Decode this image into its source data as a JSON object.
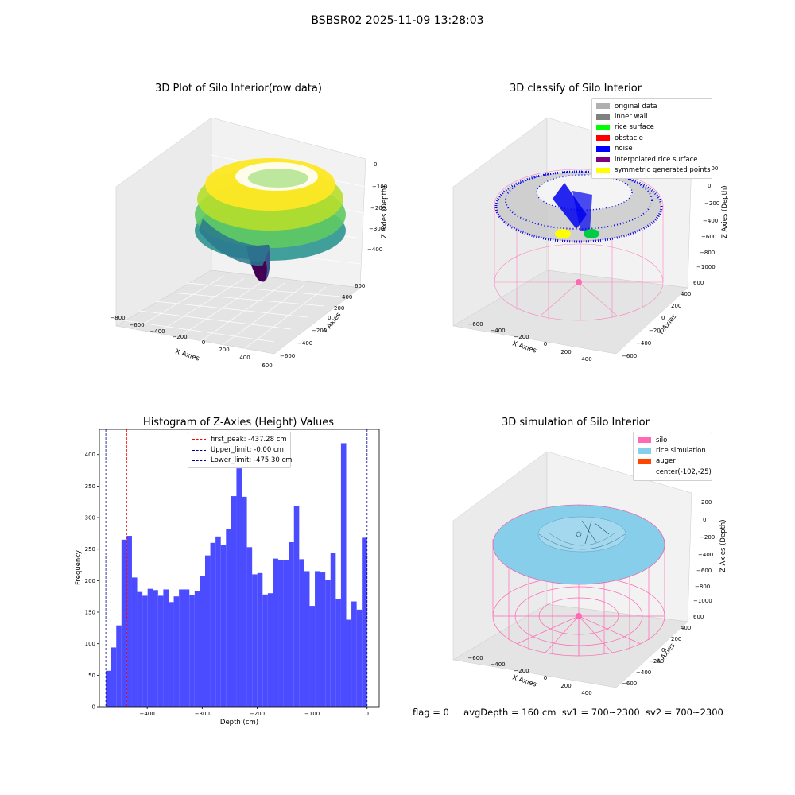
{
  "suptitle": "BSBSR02 2025-11-09 13:28:03",
  "colors": {
    "histogram_bar": "#4b4bff",
    "first_peak_line": "#ff0000",
    "limit_line": "#0000aa",
    "silo_wire": "#ff69b4",
    "rice_fill": "#87ceeb",
    "noise": "#0000ee",
    "rice_surface": "#00ff00",
    "symmetric": "#ffff00",
    "inner_wall": "#808080"
  },
  "panel_tl": {
    "title": "3D Plot of Silo Interior(row data)",
    "xlabel": "X Axies",
    "ylabel": "Y Axies",
    "zlabel": "Z Axies (Depth)",
    "xticks": [
      "−800",
      "−600",
      "−400",
      "−200",
      "0",
      "200",
      "400",
      "600"
    ],
    "yticks": [
      "−600",
      "−400",
      "−200",
      "0",
      "200",
      "400",
      "600"
    ],
    "zticks": [
      "0",
      "−100",
      "−200",
      "−300",
      "−400"
    ],
    "colormap": [
      "#fde725",
      "#5ec962",
      "#21918c",
      "#3b528b",
      "#440154"
    ]
  },
  "panel_tr": {
    "title": "3D classify of Silo Interior",
    "xlabel": "X Axies",
    "ylabel": "Y Axies",
    "zlabel": "Z Axies (Depth)",
    "xticks": [
      "−600",
      "−400",
      "−200",
      "0",
      "200",
      "400"
    ],
    "yticks": [
      "−600",
      "−400",
      "−200",
      "0",
      "200",
      "400",
      "600"
    ],
    "zticks": [
      "200",
      "0",
      "−200",
      "−400",
      "−600",
      "−800",
      "−1000"
    ],
    "legend": [
      {
        "label": "original data",
        "color": "#b0b0b0"
      },
      {
        "label": "inner wall",
        "color": "#808080"
      },
      {
        "label": "rice surface",
        "color": "#00ff00"
      },
      {
        "label": "obstacle",
        "color": "#ff0000"
      },
      {
        "label": "noise",
        "color": "#0000ff"
      },
      {
        "label": "interpolated rice surface",
        "color": "#800080"
      },
      {
        "label": "symmetric generated points",
        "color": "#ffff00"
      }
    ]
  },
  "panel_br": {
    "title": "3D simulation of Silo Interior",
    "xlabel": "X Axies",
    "ylabel": "Y Axies",
    "zlabel": "Z Axies (Depth)",
    "xticks": [
      "−600",
      "−400",
      "−200",
      "0",
      "200",
      "400"
    ],
    "yticks": [
      "−600",
      "−400",
      "−200",
      "0",
      "200",
      "400",
      "600"
    ],
    "zticks": [
      "200",
      "0",
      "−200",
      "−400",
      "−600",
      "−800",
      "−1000"
    ],
    "legend": [
      {
        "label": "silo",
        "color": "#ff69b4"
      },
      {
        "label": "rice simulation",
        "color": "#87ceeb"
      },
      {
        "label": "auger",
        "color": "#ff4500"
      },
      {
        "label": "center(-102,-25)",
        "color": ""
      }
    ]
  },
  "footer": {
    "flag": "flag = 0",
    "avg": "avgDepth = 160 cm",
    "sv1": "sv1 = 700~2300",
    "sv2": "sv2 = 700~2300"
  },
  "chart_data": {
    "type": "bar",
    "title": "Histogram of Z-Axies (Height) Values",
    "xlabel": "Depth (cm)",
    "ylabel": "Frequency",
    "xlim": [
      -487,
      22
    ],
    "ylim": [
      0,
      440
    ],
    "xticks": [
      -400,
      -300,
      -200,
      -100,
      0
    ],
    "xtick_labels": [
      "−400",
      "−300",
      "−200",
      "−100",
      "0"
    ],
    "yticks": [
      0,
      50,
      100,
      150,
      200,
      250,
      300,
      350,
      400
    ],
    "bin_start": -475.3,
    "bin_width": 9.506,
    "values": [
      57,
      94,
      129,
      265,
      271,
      205,
      182,
      176,
      187,
      185,
      176,
      186,
      166,
      175,
      186,
      186,
      177,
      184,
      207,
      240,
      260,
      270,
      257,
      282,
      334,
      378,
      333,
      253,
      210,
      212,
      178,
      180,
      235,
      233,
      232,
      261,
      319,
      234,
      215,
      160,
      215,
      213,
      201,
      244,
      171,
      418,
      138,
      167,
      154,
      268
    ],
    "lines": [
      {
        "label": "first_peak: -437.28 cm",
        "x": -437.28,
        "color": "#ff0000"
      },
      {
        "label": "Upper_limit: -0.00 cm",
        "x": 0,
        "color": "#00008b"
      },
      {
        "label": "Lower_limit: -475.30 cm",
        "x": -475.3,
        "color": "#00008b"
      }
    ]
  }
}
